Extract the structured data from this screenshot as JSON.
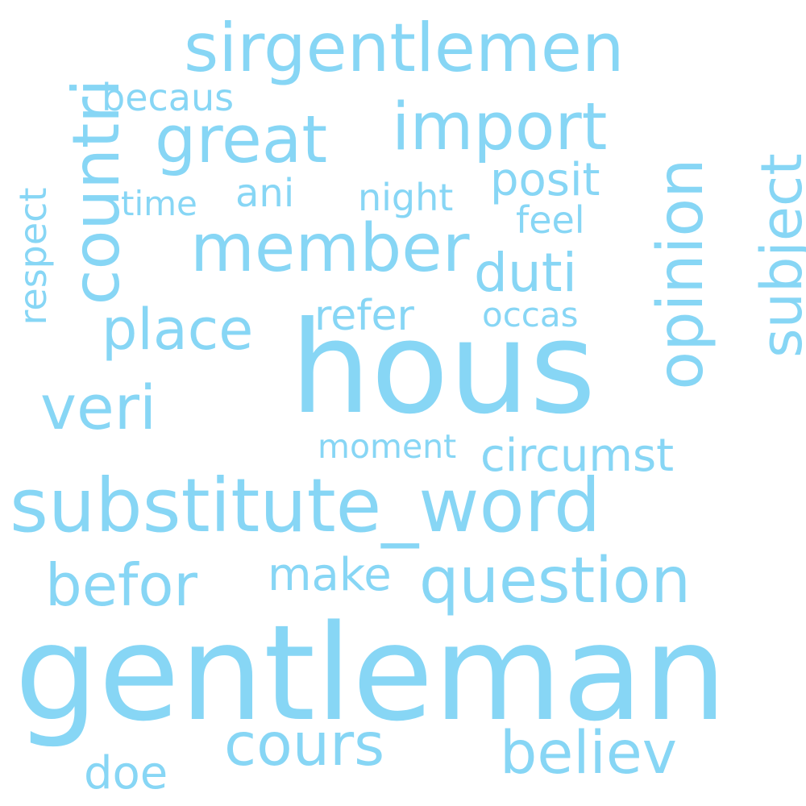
{
  "color": "#87d6f5",
  "words": {
    "gentleman": "gentleman",
    "hous": "hous",
    "substitute_word": "substitute_word",
    "sirgentlemen": "sirgentlemen",
    "member": "member",
    "question": "question",
    "import": "import",
    "great": "great",
    "countri": "countri",
    "opinion": "opinion",
    "subject": "subject",
    "veri": "veri",
    "place": "place",
    "befor": "befor",
    "cours": "cours",
    "believ": "believ",
    "duti": "duti",
    "circumst": "circumst",
    "refer": "refer",
    "posit": "posit",
    "make": "make",
    "ani": "ani",
    "night": "night",
    "becaus": "becaus",
    "time": "time",
    "feel": "feel",
    "occas": "occas",
    "moment": "moment",
    "respect": "respect",
    "doe": "doe"
  }
}
